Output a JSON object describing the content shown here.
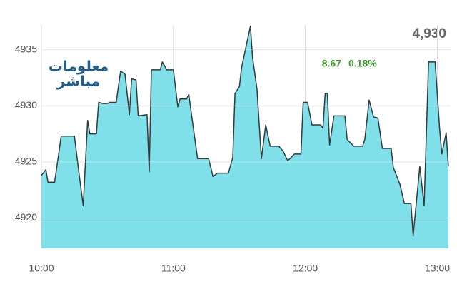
{
  "chart_data": {
    "type": "area",
    "x": [
      "10:00",
      "10:02",
      "10:03",
      "10:06",
      "10:08",
      "10:09",
      "10:15",
      "10:17",
      "10:19",
      "10:21",
      "10:22",
      "10:25",
      "10:26",
      "10:28",
      "10:30",
      "10:31",
      "10:34",
      "10:36",
      "10:38",
      "10:40",
      "10:41",
      "10:43",
      "10:44",
      "10:48",
      "10:49",
      "10:50",
      "10:54",
      "10:55",
      "10:57",
      "11:00",
      "11:02",
      "11:03",
      "11:06",
      "11:07",
      "11:09",
      "11:11",
      "11:16",
      "11:18",
      "11:20",
      "11:25",
      "11:27",
      "11:28",
      "11:30",
      "11:31",
      "11:35",
      "11:36",
      "11:38",
      "11:40",
      "11:42",
      "11:44",
      "11:48",
      "11:50",
      "11:52",
      "11:55",
      "11:58",
      "11:59",
      "12:01",
      "12:03",
      "12:07",
      "12:08",
      "12:09",
      "12:10",
      "12:11",
      "12:13",
      "12:18",
      "12:19",
      "12:22",
      "12:26",
      "12:27",
      "12:29",
      "12:31",
      "12:33",
      "12:35",
      "12:39",
      "12:40",
      "12:43",
      "12:45",
      "12:48",
      "12:49",
      "12:52",
      "12:54",
      "12:56",
      "12:59",
      "13:01",
      "13:02",
      "13:04",
      "13:05"
    ],
    "values": [
      4923.8,
      4924.3,
      4923.2,
      4923.2,
      4925.9,
      4927.3,
      4927.3,
      4924.1,
      4921.1,
      4928.7,
      4927.5,
      4927.5,
      4930.3,
      4930.2,
      4930.2,
      4930.3,
      4930.3,
      4933.1,
      4932.8,
      4929.2,
      4932.4,
      4932.3,
      4929.1,
      4929.2,
      4924.1,
      4933.2,
      4933.2,
      4933.9,
      4933.2,
      4933.2,
      4929.9,
      4930.6,
      4930.6,
      4931.0,
      4928.1,
      4925.3,
      4925.3,
      4923.7,
      4924.0,
      4924.0,
      4925.4,
      4931.1,
      4931.7,
      4933.4,
      4937.1,
      4934.3,
      4931.5,
      4925.3,
      4928.3,
      4926.4,
      4926.4,
      4925.9,
      4925.1,
      4925.7,
      4925.7,
      4930.3,
      4930.3,
      4928.3,
      4928.3,
      4928.0,
      4931.1,
      4931.1,
      4926.5,
      4929.1,
      4929.1,
      4927.0,
      4926.4,
      4926.4,
      4927.0,
      4930.5,
      4929.0,
      4928.9,
      4926.2,
      4926.2,
      4924.5,
      4923.0,
      4921.3,
      4921.3,
      4918.4,
      4924.6,
      4921.1,
      4933.9,
      4933.9,
      4928.0,
      4925.7,
      4927.6,
      4924.6
    ],
    "color": "#80e0ea",
    "line_color": "#2f3b3d",
    "xlim": [
      "10:00",
      "13:06"
    ],
    "xticks": [
      "10:00",
      "11:00",
      "12:00",
      "13:00"
    ],
    "ylim": [
      4917.3,
      4937.2
    ],
    "yticks": [
      4920,
      4925,
      4930,
      4935
    ],
    "grid": true
  },
  "header": {
    "price": "4,930",
    "change": "8.67",
    "change_percent": "0.18%"
  },
  "logo": {
    "line1": "معلومات",
    "line2": "مباشر"
  }
}
